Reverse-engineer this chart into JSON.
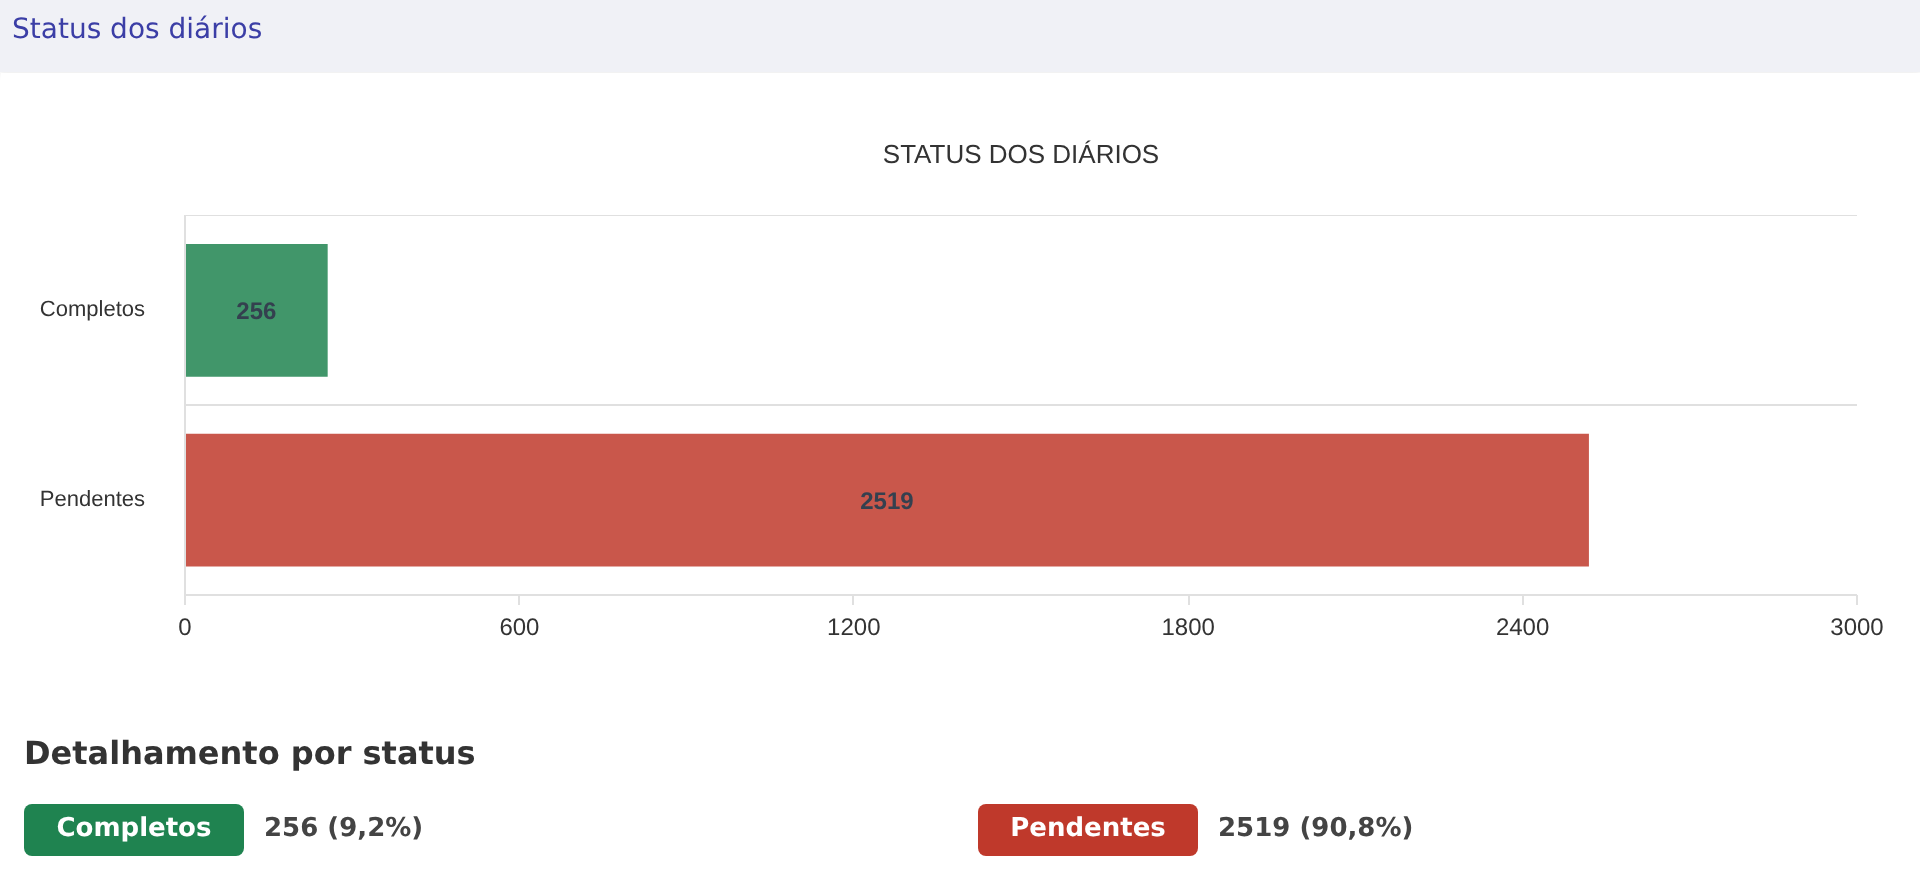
{
  "chart_data": {
    "type": "bar",
    "orientation": "horizontal",
    "title": "STATUS DOS DIÁRIOS",
    "categories": [
      "Completos",
      "Pendentes"
    ],
    "values": [
      256,
      2519
    ],
    "colors": [
      "#41966a",
      "#c9574b"
    ],
    "xlim": [
      0,
      3000
    ],
    "xticks": [
      0,
      600,
      1200,
      1800,
      2400,
      3000
    ],
    "grid": "y",
    "data_labels": true,
    "annotations": [
      "Status dos diários",
      "Detalhamento por status",
      "Completos",
      "256 (9,2%)",
      "Pendentes",
      "2519 (90,8%)"
    ]
  }
}
